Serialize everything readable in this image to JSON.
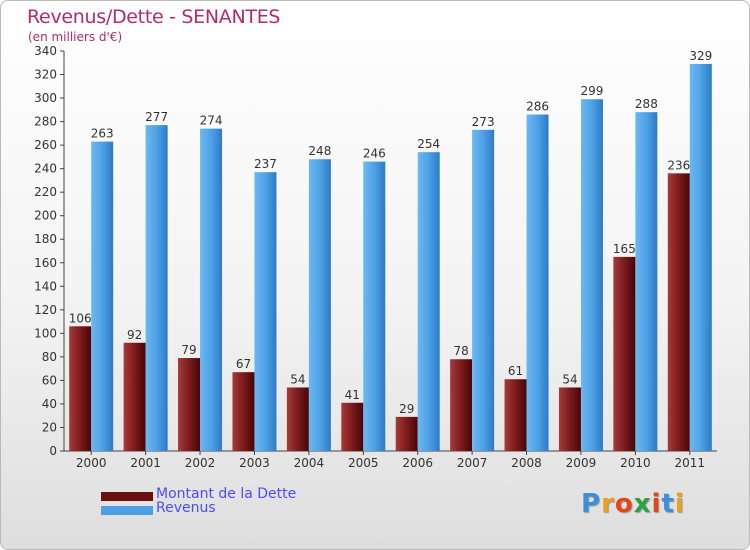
{
  "chart_data": {
    "type": "bar",
    "title": "Revenus/Dette - SENANTES",
    "subtitle": "(en milliers d'€)",
    "categories": [
      "2000",
      "2001",
      "2002",
      "2003",
      "2004",
      "2005",
      "2006",
      "2007",
      "2008",
      "2009",
      "2010",
      "2011"
    ],
    "series": [
      {
        "name": "Montant de la Dette",
        "values": [
          106,
          92,
          79,
          67,
          54,
          41,
          29,
          78,
          61,
          54,
          165,
          236
        ],
        "color": "#7a1a1a"
      },
      {
        "name": "Revenus",
        "values": [
          263,
          277,
          274,
          237,
          248,
          246,
          254,
          273,
          286,
          299,
          288,
          329
        ],
        "color": "#4c9fe4"
      }
    ],
    "ylim": [
      0,
      340
    ],
    "yticks": [
      0,
      20,
      40,
      60,
      80,
      100,
      120,
      140,
      160,
      180,
      200,
      220,
      240,
      260,
      280,
      300,
      320,
      340
    ],
    "grid": false,
    "legend": "bottom-left"
  },
  "brand": {
    "letters": [
      "P",
      "r",
      "o",
      "x",
      "i",
      "t",
      "i"
    ],
    "colors": [
      "#3b8fd8",
      "#e8a020",
      "#e04818",
      "#2f9f48",
      "#e04818",
      "#3b8fd8",
      "#e8a020"
    ]
  }
}
